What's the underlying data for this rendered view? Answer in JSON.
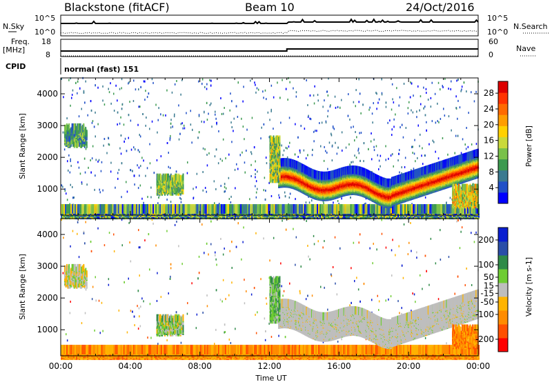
{
  "header": {
    "station": "Blackstone (fitACF)",
    "beam": "Beam 10",
    "date": "24/Oct/2016"
  },
  "top_panels": {
    "nsky_label": "N.Sky",
    "nsearch_label": "N.Search",
    "noise_ticks": [
      "10^5",
      "10^0"
    ],
    "freq_label": "Freq.",
    "freq_unit": "[MHz]",
    "freq_ticks": [
      18,
      8
    ],
    "nave_label": "Nave",
    "nave_ticks": [
      60,
      0
    ],
    "cpid_label": "CPID",
    "cpid_text": "normal (fast) 151"
  },
  "x_axis": {
    "label": "Time UT",
    "ticks": [
      "00:00",
      "04:00",
      "08:00",
      "12:00",
      "16:00",
      "20:00",
      "00:00"
    ],
    "range_hours": [
      0,
      24
    ]
  },
  "chart_data": [
    {
      "type": "heatmap",
      "name": "power",
      "ylabel": "Slant Range [km]",
      "yticks": [
        1000,
        2000,
        3000,
        4000
      ],
      "ylim": [
        180,
        4500
      ],
      "colorbar_label": "Power [dB]",
      "colorbar_ticks": [
        4,
        8,
        12,
        16,
        20,
        24,
        28
      ],
      "colorbar_range": [
        0,
        31
      ]
    },
    {
      "type": "heatmap",
      "name": "velocity",
      "ylabel": "Slant Range [km]",
      "yticks": [
        1000,
        2000,
        3000,
        4000
      ],
      "ylim": [
        180,
        4500
      ],
      "colorbar_label": "Velocity [m s-1]",
      "colorbar_ticks": [
        200,
        100,
        50,
        15,
        -15,
        -50,
        -100,
        -200
      ],
      "colorbar_range": [
        -250,
        250
      ]
    }
  ],
  "colors": {
    "power_scale": [
      "#0000ff",
      "#2050c8",
      "#3a7a90",
      "#3c9a50",
      "#79c14a",
      "#c9d93a",
      "#ffd100",
      "#ff9d00",
      "#ff6a00",
      "#ff3300",
      "#dd0000"
    ],
    "velocity_scale": [
      "#ff0000",
      "#ff5000",
      "#ff8c00",
      "#ffb400",
      "#bebebe",
      "#6ecc33",
      "#2f8a48",
      "#2a4ea8",
      "#0a1ed0"
    ]
  }
}
